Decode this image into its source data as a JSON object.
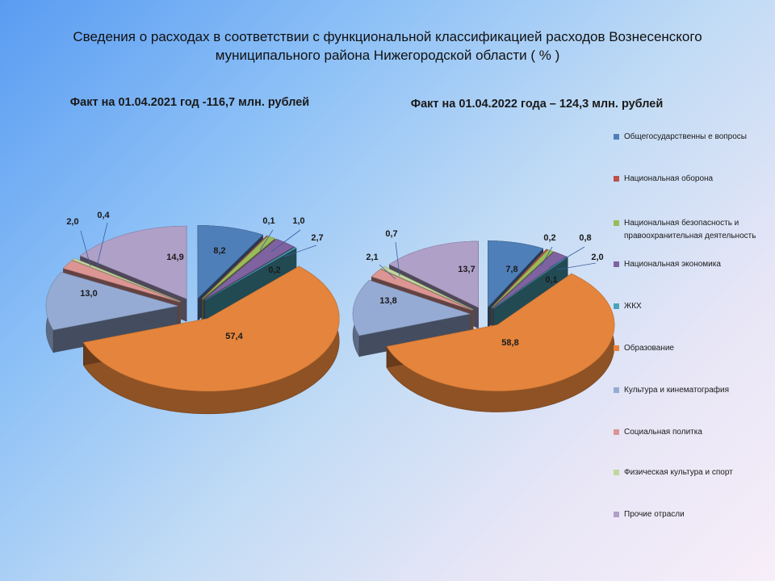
{
  "title": "Сведения о расходах в соответствии с функциональной классификацией расходов Вознесенского муниципального района Нижегородской области ( % )",
  "colors": {
    "general": "#4f7fb8",
    "defense": "#bf4f4c",
    "security": "#9bbb59",
    "economy": "#7f62a0",
    "housing": "#4aa4b8",
    "education": "#e5843c",
    "culture": "#95abd4",
    "social": "#dc9593",
    "sport": "#c2d69b",
    "other": "#afa0c8"
  },
  "legend": [
    {
      "key": "general",
      "label": "Общегосударственны е вопросы"
    },
    {
      "key": "defense",
      "label": "Национальная оборона"
    },
    {
      "key": "security",
      "label": "Национальная безопасность и правоохранительная деятельность"
    },
    {
      "key": "economy",
      "label": "Национальная экономика"
    },
    {
      "key": "housing",
      "label": "ЖКХ"
    },
    {
      "key": "education",
      "label": "Образование"
    },
    {
      "key": "culture",
      "label": "Культура и кинематография"
    },
    {
      "key": "social",
      "label": "Социальная политка"
    },
    {
      "key": "sport",
      "label": "Физическая культура и спорт"
    },
    {
      "key": "other",
      "label": "Прочие отрасли"
    }
  ],
  "chart_data": [
    {
      "type": "pie",
      "title": "Факт на 01.04.2021 год -116,7 млн. рублей",
      "categories": [
        "Общегосударственны е вопросы",
        "Национальная оборона",
        "Национальная безопасность и правоохранительная деятельность",
        "Национальная экономика",
        "ЖКХ",
        "Образование",
        "Культура и кинематография",
        "Социальная политка",
        "Физическая культура и спорт",
        "Прочие отрасли"
      ],
      "values": [
        8.2,
        0.1,
        1.0,
        2.7,
        0.2,
        57.4,
        13.0,
        2.0,
        0.4,
        14.9
      ],
      "labels": [
        "8,2",
        "0,1",
        "1,0",
        "2,7",
        "0,2",
        "57,4",
        "13,0",
        "2,0",
        "0,4",
        "14,9"
      ],
      "legend_placement": "right",
      "exploded": true,
      "three_d": true
    },
    {
      "type": "pie",
      "title": "Факт на 01.04.2022 года – 124,3 млн. рублей",
      "categories": [
        "Общегосударственны е вопросы",
        "Национальная оборона",
        "Национальная безопасность и правоохранительная деятельность",
        "Национальная экономика",
        "ЖКХ",
        "Образование",
        "Культура и кинематография",
        "Социальная политка",
        "Физическая культура и спорт",
        "Прочие отрасли"
      ],
      "values": [
        7.8,
        0.2,
        0.8,
        2.0,
        0.1,
        58.8,
        13.8,
        2.1,
        0.7,
        13.7
      ],
      "labels": [
        "7,8",
        "0,2",
        "0,8",
        "2,0",
        "0,1",
        "58,8",
        "13,8",
        "2,1",
        "0,7",
        "13,7"
      ],
      "legend_placement": "right",
      "exploded": true,
      "three_d": true
    }
  ]
}
